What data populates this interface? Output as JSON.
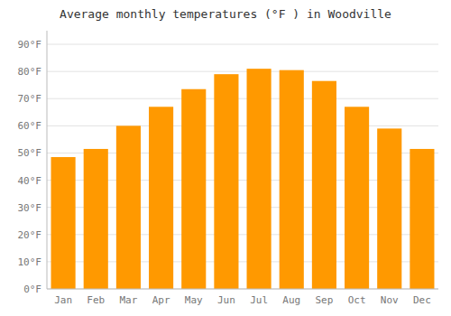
{
  "chart_data": {
    "type": "bar",
    "title": "Average monthly temperatures (°F ) in Woodville",
    "categories": [
      "Jan",
      "Feb",
      "Mar",
      "Apr",
      "May",
      "Jun",
      "Jul",
      "Aug",
      "Sep",
      "Oct",
      "Nov",
      "Dec"
    ],
    "values": [
      48.5,
      51.5,
      60.0,
      67.0,
      73.5,
      79.0,
      81.0,
      80.5,
      76.5,
      67.0,
      59.0,
      51.5
    ],
    "color": "#FF9900",
    "ylim": [
      0,
      95
    ],
    "yticks": [
      {
        "value": 0,
        "label": "0°F"
      },
      {
        "value": 10,
        "label": "10°F"
      },
      {
        "value": 20,
        "label": "20°F"
      },
      {
        "value": 30,
        "label": "30°F"
      },
      {
        "value": 40,
        "label": "40°F"
      },
      {
        "value": 50,
        "label": "50°F"
      },
      {
        "value": 60,
        "label": "60°F"
      },
      {
        "value": 70,
        "label": "70°F"
      },
      {
        "value": 80,
        "label": "80°F"
      },
      {
        "value": 90,
        "label": "90°F"
      }
    ],
    "grid": true
  }
}
